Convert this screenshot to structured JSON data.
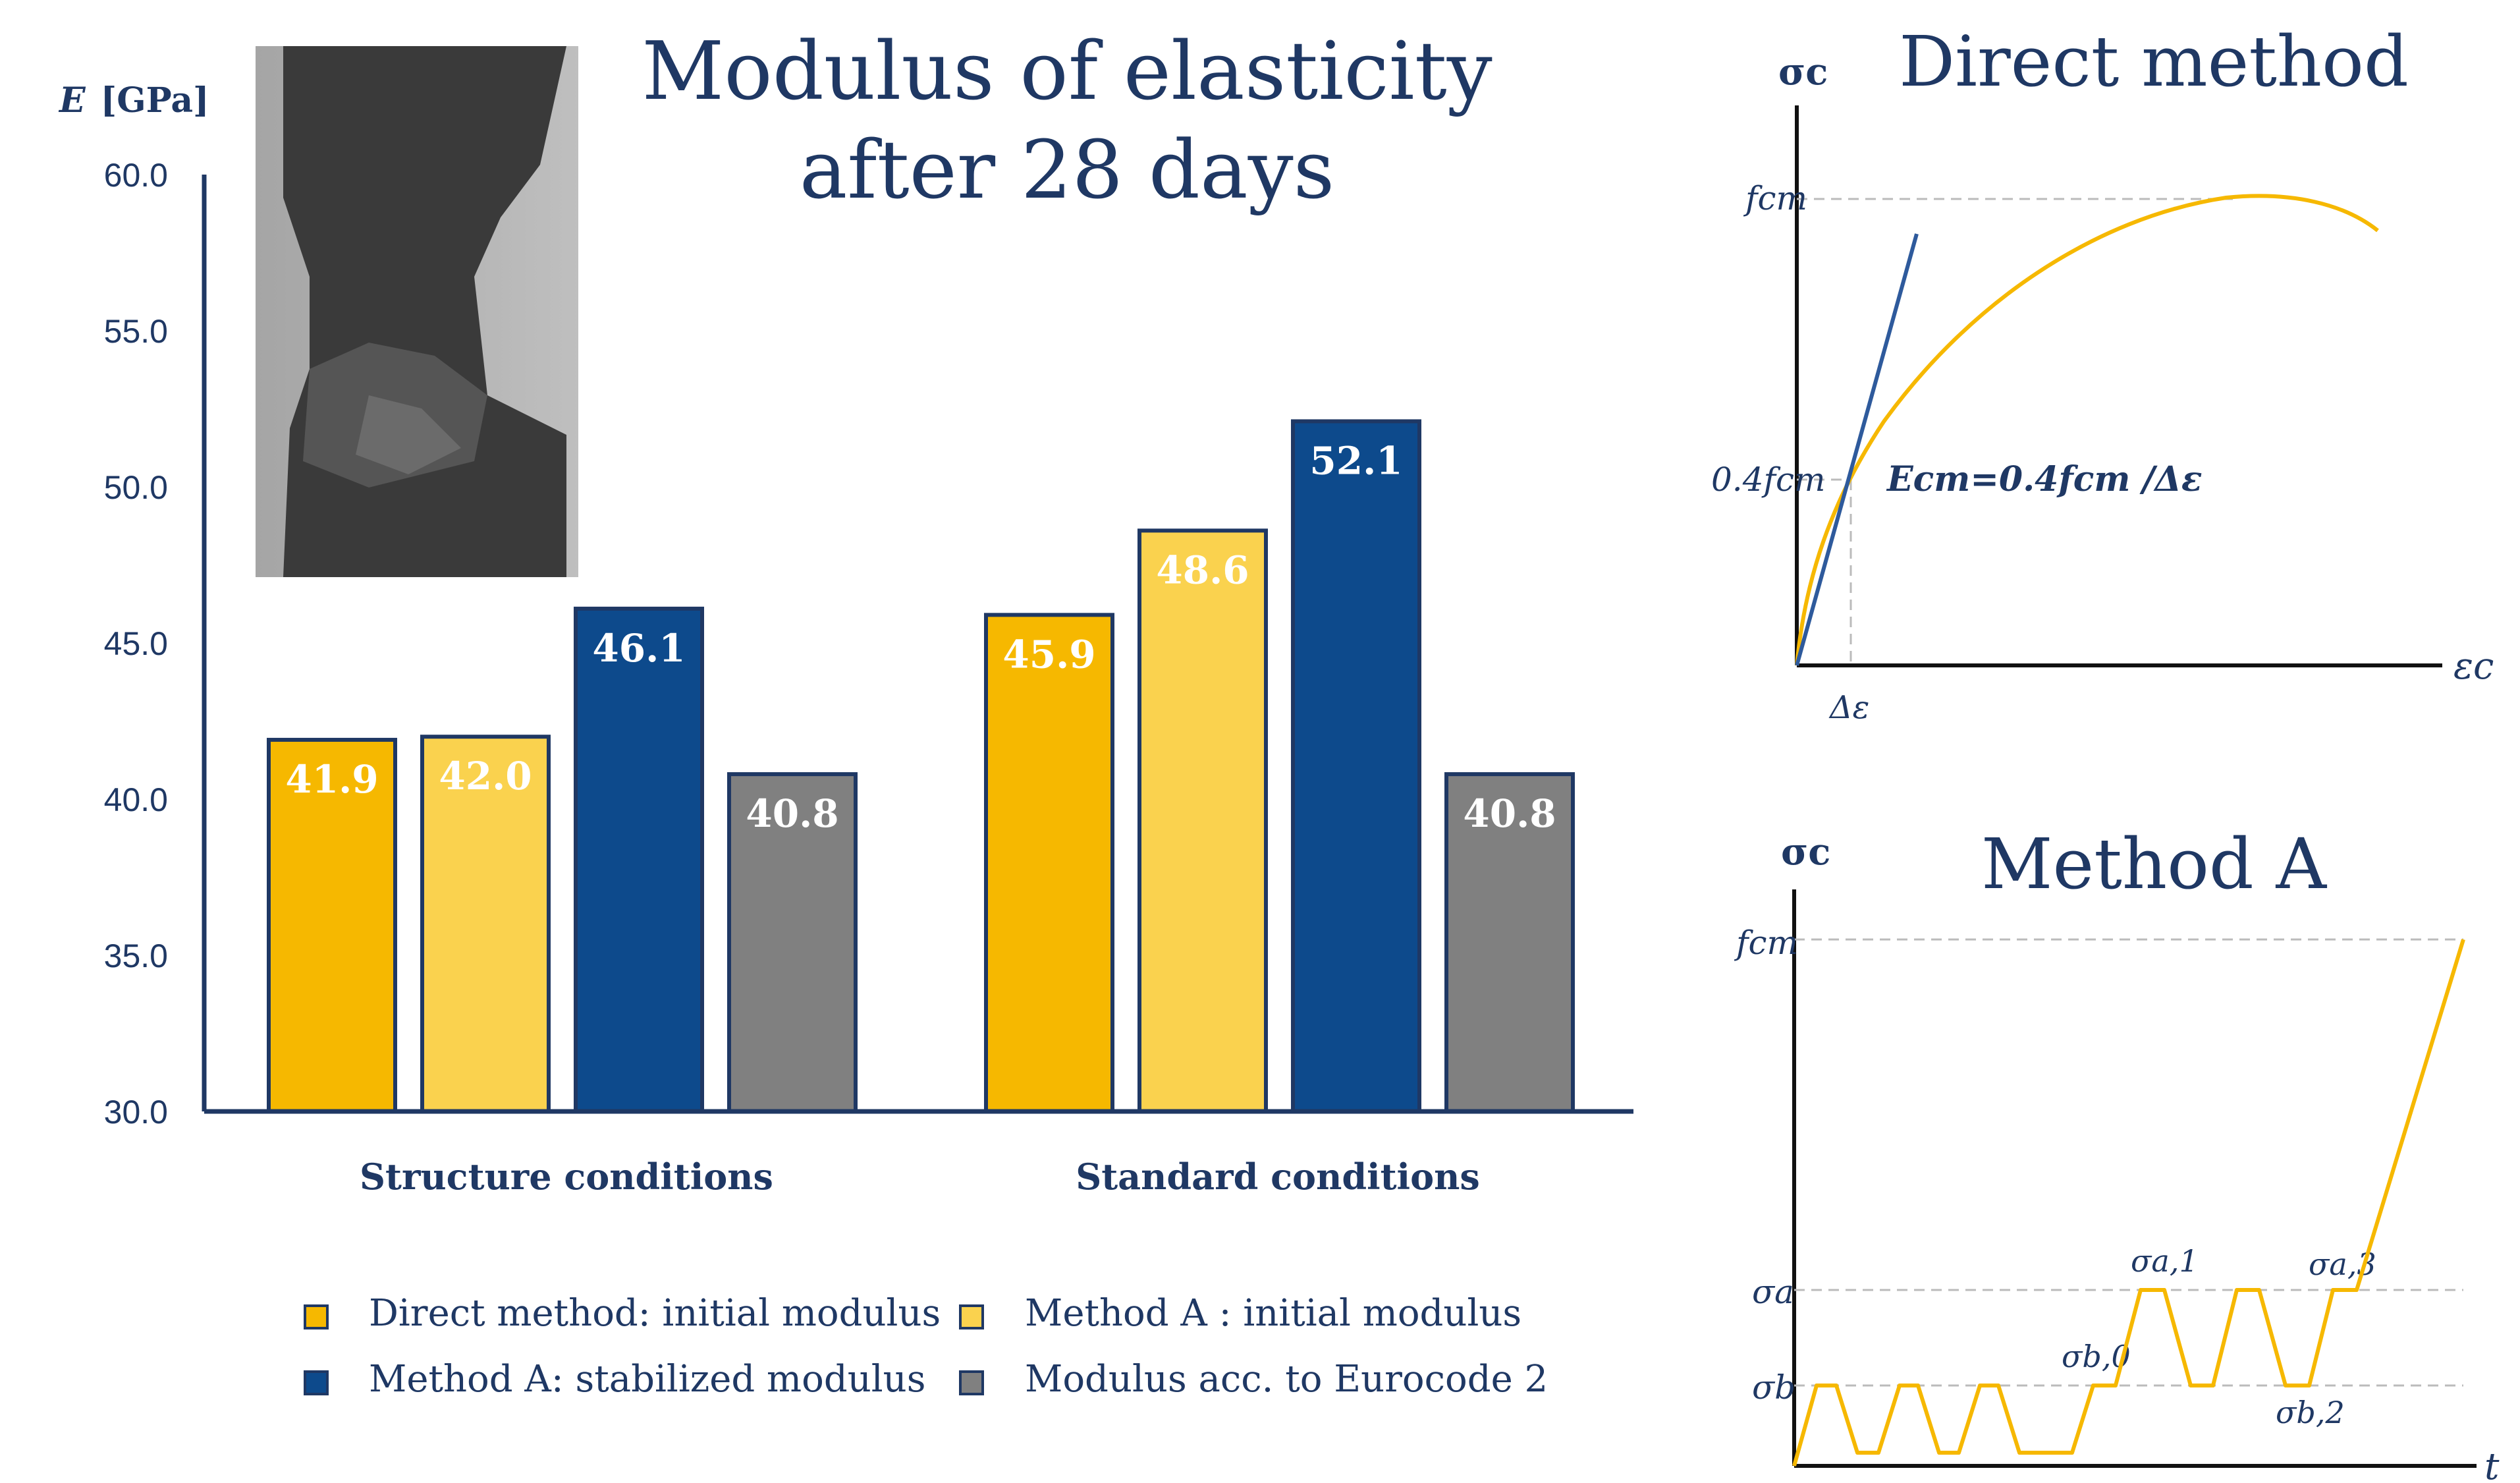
{
  "chart_data": {
    "type": "bar",
    "title_line1": "Modulus of elasticity",
    "title_line2": "after  28 days",
    "ylabel_symbol": "E",
    "ylabel_unit": "[GPa]",
    "ylim": [
      30,
      60
    ],
    "yticks": [
      "30.0",
      "35.0",
      "40.0",
      "45.0",
      "50.0",
      "55.0",
      "60.0"
    ],
    "categories": [
      "Structure conditions",
      "Standard conditions"
    ],
    "series": [
      {
        "name": "Direct method: initial modulus",
        "color": "#f6b800",
        "values": [
          41.9,
          45.9
        ],
        "labels": [
          "41.9",
          "45.9"
        ]
      },
      {
        "name": "Method A : initial modulus",
        "color": "#fad24e",
        "values": [
          42.0,
          48.6
        ],
        "labels": [
          "42.0",
          "48.6"
        ]
      },
      {
        "name": "Method A: stabilized modulus",
        "color": "#0d4a8c",
        "values": [
          46.1,
          52.1
        ],
        "labels": [
          "46.1",
          "52.1"
        ]
      },
      {
        "name": "Modulus acc. to Eurocode 2",
        "color": "#808080",
        "values": [
          40.8,
          40.8
        ],
        "labels": [
          "40.8",
          "40.8"
        ]
      }
    ],
    "legend_position": "bottom"
  },
  "photo": {
    "icon": "concrete-specimen-photo"
  },
  "direct_method": {
    "title": "Direct method",
    "y_axis": "σc",
    "x_axis": "εc",
    "fcm_label": "fcm",
    "fcm04_label": "0.4fcm",
    "delta_eps": "Δε",
    "formula": "Ecm=0.4fcm /Δε",
    "curve_color": "#f6b800",
    "line_color": "#2e5a9c"
  },
  "method_a": {
    "title": "Method A",
    "y_axis": "σc",
    "x_axis": "t",
    "fcm_label": "fcm",
    "sigma_a": "σa",
    "sigma_b": "σb",
    "sigma_a1": "σa,1",
    "sigma_a3": "σa,3",
    "sigma_b0": "σb,0",
    "sigma_b2": "σb,2",
    "curve_color": "#f6b800"
  }
}
